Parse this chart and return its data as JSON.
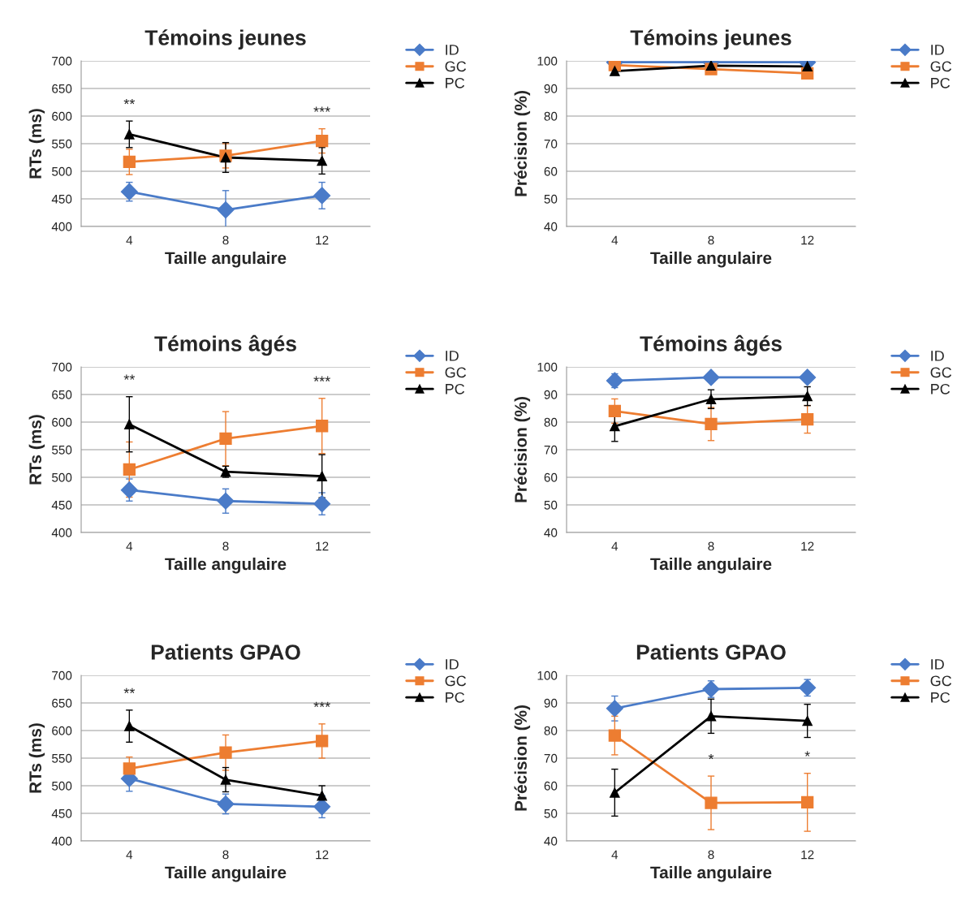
{
  "chart_data": [
    {
      "type": "line",
      "title": "Témoins jeunes",
      "xlabel": "Taille angulaire",
      "ylabel": "RTs (ms)",
      "categories": [
        "4",
        "8",
        "12"
      ],
      "ylim": [
        400,
        700
      ],
      "yticks": [
        400,
        450,
        500,
        550,
        600,
        650,
        700
      ],
      "grid": "y",
      "legend": "right",
      "series": [
        {
          "name": "ID",
          "color": "#4a7bc8",
          "marker": "diamond",
          "values": [
            463,
            430,
            456
          ],
          "errors": [
            17,
            35,
            24
          ]
        },
        {
          "name": "GC",
          "color": "#ed7d31",
          "marker": "square",
          "values": [
            517,
            528,
            555
          ],
          "errors": [
            23,
            22,
            22
          ]
        },
        {
          "name": "PC",
          "color": "#000000",
          "marker": "triangle",
          "values": [
            567,
            525,
            519
          ],
          "errors": [
            24,
            27,
            24
          ]
        }
      ],
      "annotations": [
        "**",
        "***"
      ]
    },
    {
      "type": "line",
      "title": "Témoins jeunes",
      "xlabel": "Taille angulaire",
      "ylabel": "Précision (%)",
      "categories": [
        "4",
        "8",
        "12"
      ],
      "ylim": [
        40,
        100
      ],
      "yticks": [
        40,
        50,
        60,
        70,
        80,
        90,
        100
      ],
      "grid": "y",
      "legend": "right",
      "series": [
        {
          "name": "ID",
          "color": "#4a7bc8",
          "marker": "diamond",
          "values": [
            99.5,
            99.5,
            99.5
          ]
        },
        {
          "name": "GC",
          "color": "#ed7d31",
          "marker": "square",
          "values": [
            98.5,
            97,
            95.5
          ]
        },
        {
          "name": "PC",
          "color": "#000000",
          "marker": "triangle",
          "values": [
            96.3,
            98.3,
            98
          ]
        }
      ]
    },
    {
      "type": "line",
      "title": "Témoins âgés",
      "xlabel": "Taille angulaire",
      "ylabel": "RTs (ms)",
      "categories": [
        "4",
        "8",
        "12"
      ],
      "ylim": [
        400,
        700
      ],
      "yticks": [
        400,
        450,
        500,
        550,
        600,
        650,
        700
      ],
      "grid": "y",
      "legend": "right",
      "series": [
        {
          "name": "ID",
          "color": "#4a7bc8",
          "marker": "diamond",
          "values": [
            477,
            457,
            452
          ],
          "errors": [
            20,
            22,
            20
          ]
        },
        {
          "name": "GC",
          "color": "#ed7d31",
          "marker": "square",
          "values": [
            514,
            570,
            593
          ],
          "errors": [
            50,
            49,
            50
          ]
        },
        {
          "name": "PC",
          "color": "#000000",
          "marker": "triangle",
          "values": [
            596,
            510,
            502
          ],
          "errors": [
            50,
            10,
            39
          ]
        }
      ],
      "annotations": [
        "**",
        "***"
      ]
    },
    {
      "type": "line",
      "title": "Témoins âgés",
      "xlabel": "Taille angulaire",
      "ylabel": "Précision (%)",
      "categories": [
        "4",
        "8",
        "12"
      ],
      "ylim": [
        40,
        100
      ],
      "yticks": [
        40,
        50,
        60,
        70,
        80,
        90,
        100
      ],
      "grid": "y",
      "legend": "right",
      "series": [
        {
          "name": "ID",
          "color": "#4a7bc8",
          "marker": "diamond",
          "values": [
            95,
            96.2,
            96.2
          ],
          "errors": [
            2.5,
            null,
            null
          ]
        },
        {
          "name": "GC",
          "color": "#ed7d31",
          "marker": "square",
          "values": [
            84,
            79.3,
            81
          ],
          "errors": [
            4.4,
            6,
            5
          ]
        },
        {
          "name": "PC",
          "color": "#000000",
          "marker": "triangle",
          "values": [
            78.5,
            88.3,
            89.4
          ],
          "errors": [
            5.5,
            3.4,
            3.4
          ]
        }
      ]
    },
    {
      "type": "line",
      "title": "Patients GPAO",
      "xlabel": "Taille angulaire",
      "ylabel": "RTs (ms)",
      "categories": [
        "4",
        "8",
        "12"
      ],
      "ylim": [
        400,
        700
      ],
      "yticks": [
        400,
        450,
        500,
        550,
        600,
        650,
        700
      ],
      "grid": "y",
      "legend": "right",
      "series": [
        {
          "name": "ID",
          "color": "#4a7bc8",
          "marker": "diamond",
          "values": [
            513,
            467,
            462
          ],
          "errors": [
            23,
            18,
            20
          ]
        },
        {
          "name": "GC",
          "color": "#ed7d31",
          "marker": "square",
          "values": [
            531,
            560,
            581
          ],
          "errors": [
            21,
            32,
            31
          ]
        },
        {
          "name": "PC",
          "color": "#000000",
          "marker": "triangle",
          "values": [
            608,
            511,
            482
          ],
          "errors": [
            29,
            22,
            18
          ]
        }
      ],
      "annotations": [
        "**",
        "***"
      ]
    },
    {
      "type": "line",
      "title": "Patients GPAO",
      "xlabel": "Taille angulaire",
      "ylabel": "Précision (%)",
      "categories": [
        "4",
        "8",
        "12"
      ],
      "ylim": [
        40,
        100
      ],
      "yticks": [
        40,
        50,
        60,
        70,
        80,
        90,
        100
      ],
      "grid": "y",
      "legend": "right",
      "series": [
        {
          "name": "ID",
          "color": "#4a7bc8",
          "marker": "diamond",
          "values": [
            88,
            95,
            95.5
          ],
          "errors": [
            4.5,
            3,
            3
          ]
        },
        {
          "name": "GC",
          "color": "#ed7d31",
          "marker": "square",
          "values": [
            78.2,
            53.8,
            54
          ],
          "errors": [
            7,
            9.7,
            10.5
          ]
        },
        {
          "name": "PC",
          "color": "#000000",
          "marker": "triangle",
          "values": [
            57.5,
            85.2,
            83.5
          ],
          "errors": [
            8.5,
            6.2,
            6
          ]
        }
      ],
      "annotations": [
        "*",
        "*"
      ]
    }
  ]
}
